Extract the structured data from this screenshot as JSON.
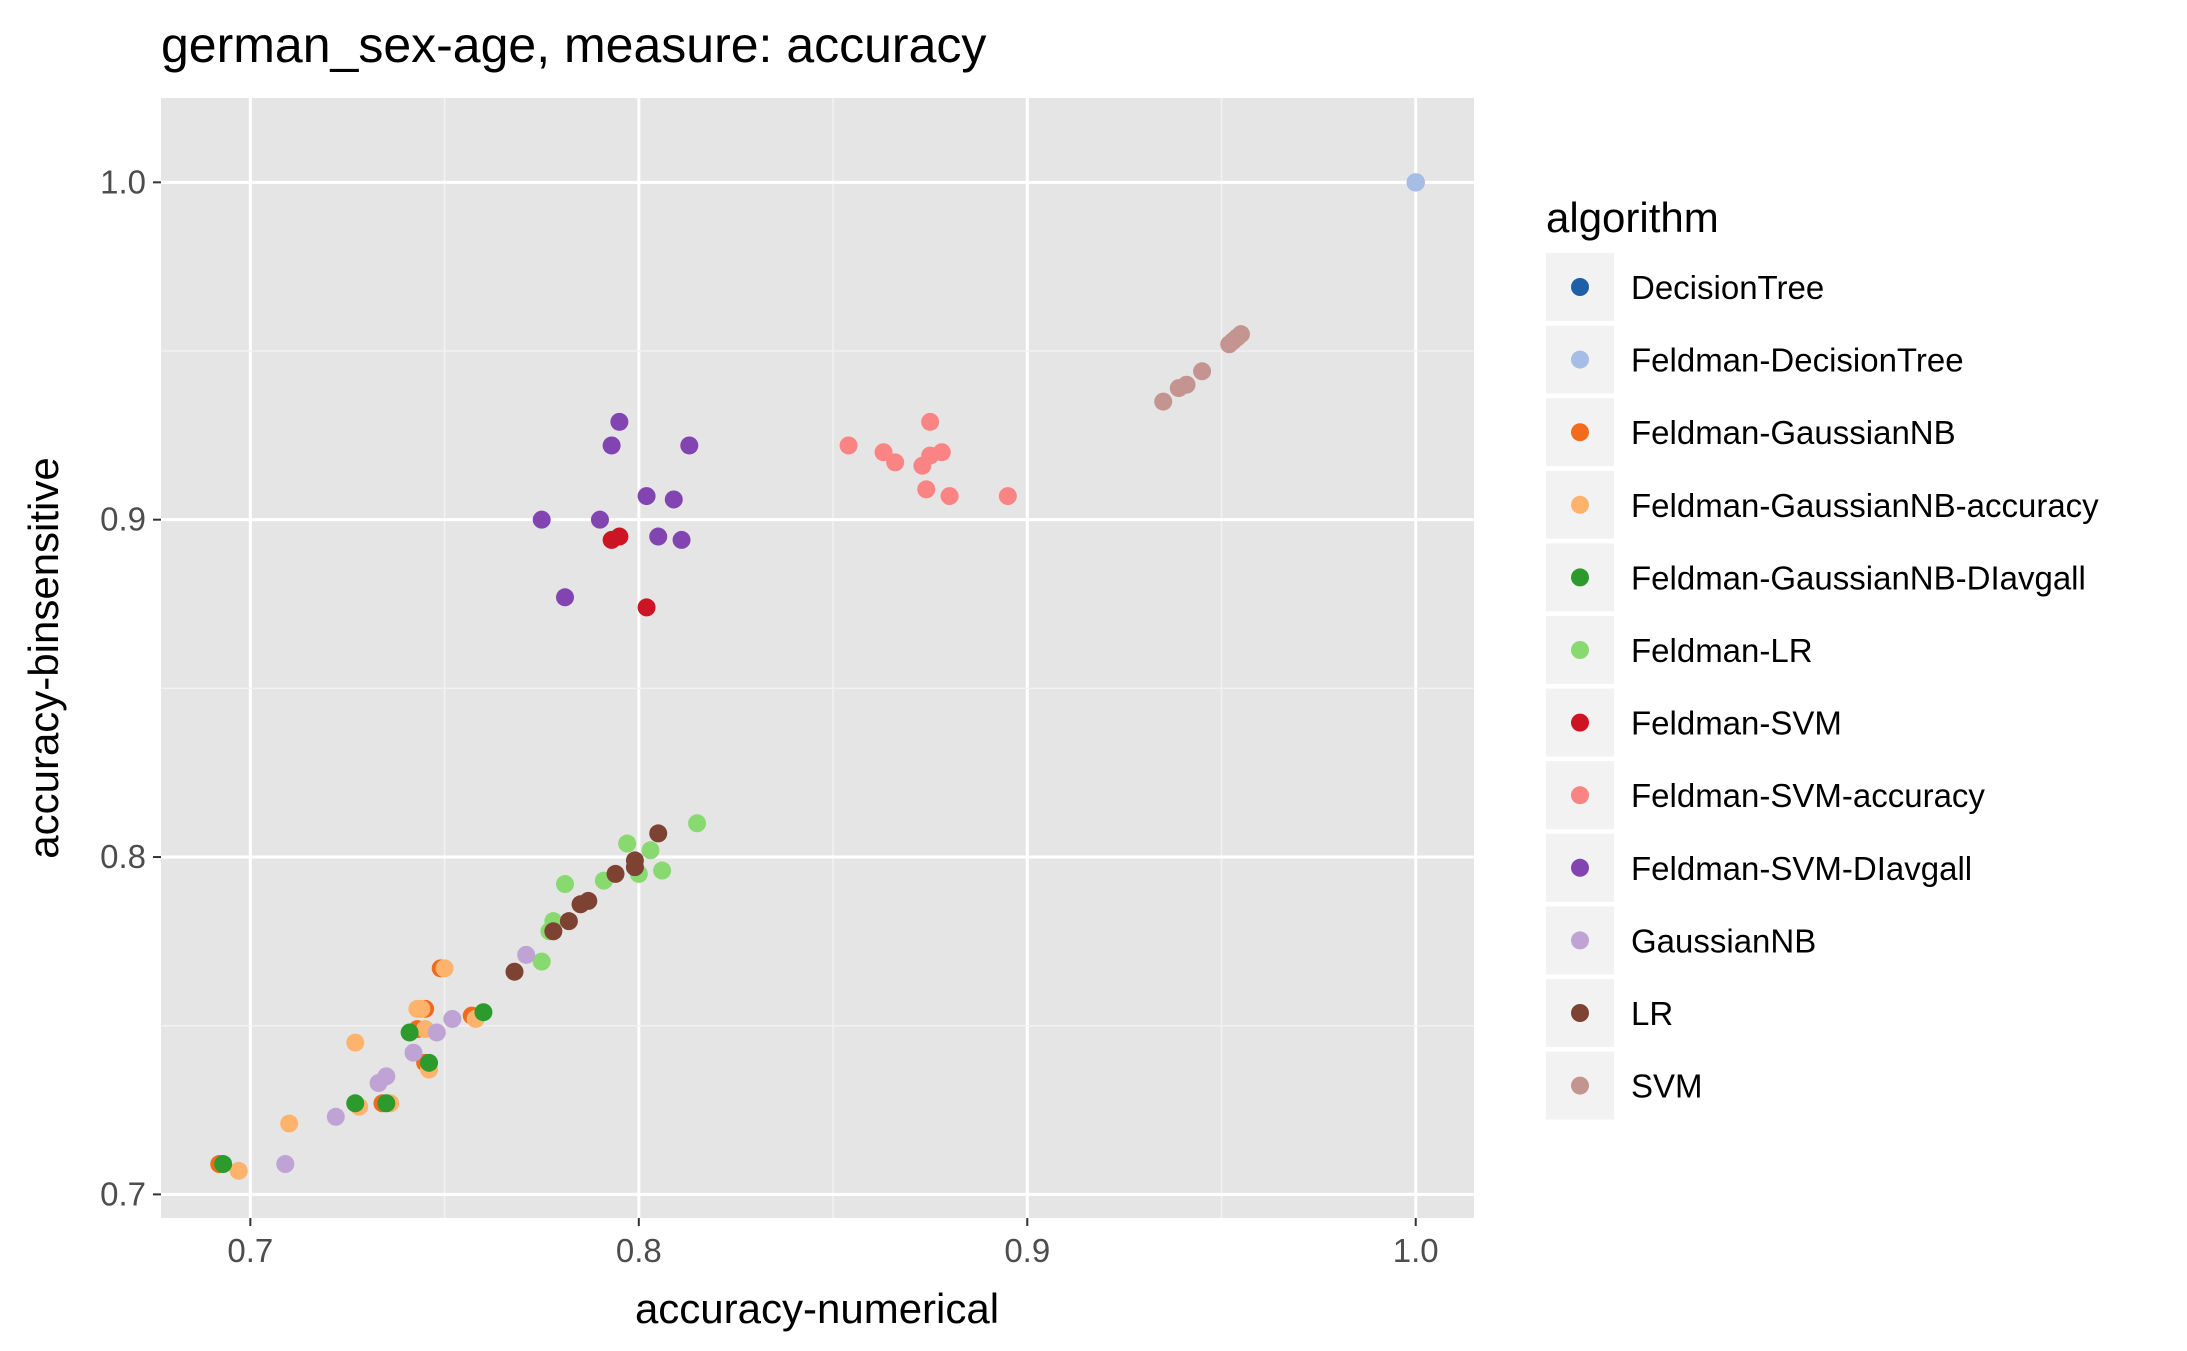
{
  "chart_data": {
    "type": "scatter",
    "title": "german_sex-age, measure: accuracy",
    "xlabel": "accuracy-numerical",
    "ylabel": "accuracy-binsensitive",
    "xlim": [
      0.677,
      1.015
    ],
    "ylim": [
      0.693,
      1.025
    ],
    "x_ticks": [
      0.7,
      0.8,
      0.9,
      1.0
    ],
    "x_tick_labels": [
      "0.7",
      "0.8",
      "0.9",
      "1.0"
    ],
    "y_ticks": [
      0.7,
      0.8,
      0.9,
      1.0
    ],
    "y_tick_labels": [
      "0.7",
      "0.8",
      "0.9",
      "1.0"
    ],
    "grid": true,
    "legend_position": "right",
    "legend_title": "algorithm",
    "series": [
      {
        "name": "DecisionTree",
        "color": "#1f5fa8",
        "points": [
          [
            1.0,
            1.0
          ]
        ]
      },
      {
        "name": "Feldman-DecisionTree",
        "color": "#a6bee6",
        "points": [
          [
            1.0,
            1.0
          ]
        ]
      },
      {
        "name": "Feldman-GaussianNB",
        "color": "#f26b1d",
        "points": [
          [
            0.692,
            0.709
          ],
          [
            0.734,
            0.727
          ],
          [
            0.743,
            0.749
          ],
          [
            0.745,
            0.739
          ],
          [
            0.749,
            0.767
          ],
          [
            0.757,
            0.753
          ],
          [
            0.745,
            0.755
          ]
        ]
      },
      {
        "name": "Feldman-GaussianNB-accuracy",
        "color": "#fdb36b",
        "points": [
          [
            0.697,
            0.707
          ],
          [
            0.71,
            0.721
          ],
          [
            0.727,
            0.745
          ],
          [
            0.728,
            0.726
          ],
          [
            0.736,
            0.727
          ],
          [
            0.743,
            0.755
          ],
          [
            0.745,
            0.749
          ],
          [
            0.746,
            0.737
          ],
          [
            0.75,
            0.767
          ],
          [
            0.758,
            0.752
          ],
          [
            0.744,
            0.755
          ]
        ]
      },
      {
        "name": "Feldman-GaussianNB-DIavgall",
        "color": "#2d9a2d",
        "points": [
          [
            0.693,
            0.709
          ],
          [
            0.727,
            0.727
          ],
          [
            0.735,
            0.727
          ],
          [
            0.741,
            0.748
          ],
          [
            0.746,
            0.739
          ],
          [
            0.76,
            0.754
          ]
        ]
      },
      {
        "name": "Feldman-LR",
        "color": "#88d96f",
        "points": [
          [
            0.775,
            0.769
          ],
          [
            0.777,
            0.778
          ],
          [
            0.778,
            0.781
          ],
          [
            0.781,
            0.792
          ],
          [
            0.791,
            0.793
          ],
          [
            0.797,
            0.804
          ],
          [
            0.8,
            0.795
          ],
          [
            0.803,
            0.802
          ],
          [
            0.806,
            0.796
          ],
          [
            0.815,
            0.81
          ]
        ]
      },
      {
        "name": "Feldman-SVM",
        "color": "#cc1424",
        "points": [
          [
            0.793,
            0.894
          ],
          [
            0.795,
            0.895
          ],
          [
            0.802,
            0.874
          ]
        ]
      },
      {
        "name": "Feldman-SVM-accuracy",
        "color": "#fa8383",
        "points": [
          [
            0.854,
            0.922
          ],
          [
            0.863,
            0.92
          ],
          [
            0.866,
            0.917
          ],
          [
            0.873,
            0.916
          ],
          [
            0.874,
            0.909
          ],
          [
            0.875,
            0.919
          ],
          [
            0.875,
            0.929
          ],
          [
            0.878,
            0.92
          ],
          [
            0.88,
            0.907
          ],
          [
            0.895,
            0.907
          ]
        ]
      },
      {
        "name": "Feldman-SVM-DIavgall",
        "color": "#8144b0",
        "points": [
          [
            0.775,
            0.9
          ],
          [
            0.781,
            0.877
          ],
          [
            0.79,
            0.9
          ],
          [
            0.793,
            0.922
          ],
          [
            0.795,
            0.929
          ],
          [
            0.802,
            0.907
          ],
          [
            0.805,
            0.895
          ],
          [
            0.809,
            0.906
          ],
          [
            0.811,
            0.894
          ],
          [
            0.813,
            0.922
          ]
        ]
      },
      {
        "name": "GaussianNB",
        "color": "#bfa3d4",
        "points": [
          [
            0.709,
            0.709
          ],
          [
            0.722,
            0.723
          ],
          [
            0.733,
            0.733
          ],
          [
            0.735,
            0.735
          ],
          [
            0.742,
            0.742
          ],
          [
            0.748,
            0.748
          ],
          [
            0.752,
            0.752
          ],
          [
            0.771,
            0.771
          ]
        ]
      },
      {
        "name": "LR",
        "color": "#7d4231",
        "points": [
          [
            0.768,
            0.766
          ],
          [
            0.778,
            0.778
          ],
          [
            0.782,
            0.781
          ],
          [
            0.785,
            0.786
          ],
          [
            0.787,
            0.787
          ],
          [
            0.794,
            0.795
          ],
          [
            0.799,
            0.799
          ],
          [
            0.799,
            0.797
          ],
          [
            0.805,
            0.807
          ]
        ]
      },
      {
        "name": "SVM",
        "color": "#c49590",
        "points": [
          [
            0.935,
            0.935
          ],
          [
            0.939,
            0.939
          ],
          [
            0.941,
            0.94
          ],
          [
            0.945,
            0.944
          ],
          [
            0.952,
            0.952
          ],
          [
            0.953,
            0.953
          ],
          [
            0.954,
            0.954
          ],
          [
            0.955,
            0.955
          ]
        ]
      }
    ]
  }
}
